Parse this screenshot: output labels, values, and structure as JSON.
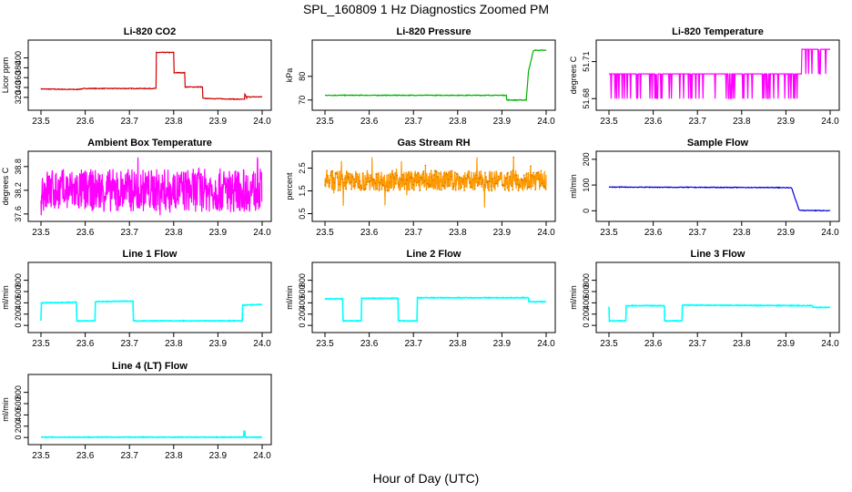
{
  "figure": {
    "title": "SPL_160809  1 Hz Diagnostics Zoomed PM",
    "xlabel": "Hour of Day (UTC)"
  },
  "chart_data": [
    {
      "type": "line",
      "title": "Li-820 CO2",
      "ylabel": "Licor ppm",
      "xlim": [
        23.5,
        24.0
      ],
      "ylim": [
        305,
        425
      ],
      "xticks": [
        "23.5",
        "23.6",
        "23.7",
        "23.8",
        "23.9",
        "24.0"
      ],
      "yticks": [
        320,
        340,
        360,
        380,
        400
      ],
      "color": "#d00000",
      "grid": false,
      "series": [
        {
          "x": [
            23.5,
            23.58,
            23.6,
            23.62,
            23.76,
            23.761,
            23.8,
            23.801,
            23.825,
            23.826,
            23.865,
            23.866,
            23.96,
            23.961,
            23.965,
            23.966,
            24.0
          ],
          "values": [
            337,
            336,
            338,
            338,
            338,
            411,
            411,
            370,
            370,
            341,
            341,
            318,
            316,
            327,
            319,
            321,
            321
          ]
        }
      ]
    },
    {
      "type": "line",
      "title": "Li-820 Pressure",
      "ylabel": "kPa",
      "xlim": [
        23.5,
        24.0
      ],
      "ylim": [
        68,
        93
      ],
      "xticks": [
        "23.5",
        "23.6",
        "23.7",
        "23.8",
        "23.9",
        "24.0"
      ],
      "yticks": [
        70,
        80
      ],
      "color": "#00b000",
      "grid": false,
      "series": [
        {
          "x": [
            23.5,
            23.91,
            23.911,
            23.955,
            23.96,
            23.97,
            23.972,
            24.0
          ],
          "values": [
            72,
            72,
            70,
            70,
            82,
            90,
            91,
            91
          ]
        }
      ]
    },
    {
      "type": "line",
      "title": "Li-820 Temperature",
      "ylabel": "degrees C",
      "xlim": [
        23.5,
        24.0
      ],
      "ylim": [
        51.675,
        51.723
      ],
      "xticks": [
        "23.5",
        "23.6",
        "23.7",
        "23.8",
        "23.9",
        "24.0"
      ],
      "yticks": [
        51.68,
        51.71
      ],
      "color": "#ff00ff",
      "grid": false,
      "series": [
        {
          "x": [
            23.5,
            23.935,
            23.936,
            24.0
          ],
          "values": [
            51.7,
            51.7,
            51.72,
            51.72
          ]
        }
      ]
    },
    {
      "type": "line",
      "title": "Ambient Box Temperature",
      "ylabel": "degrees C",
      "xlim": [
        23.5,
        24.0
      ],
      "ylim": [
        37.55,
        39.05
      ],
      "xticks": [
        "23.5",
        "23.6",
        "23.7",
        "23.8",
        "23.9",
        "24.0"
      ],
      "yticks": [
        37.6,
        38.2,
        38.8
      ],
      "color": "#ff00ff",
      "grid": false,
      "series": [
        {
          "x": [
            23.5,
            24.0
          ],
          "values": [
            38.2,
            38.2
          ]
        }
      ]
    },
    {
      "type": "line",
      "title": "Gas Stream RH",
      "ylabel": "percent",
      "xlim": [
        23.5,
        24.0
      ],
      "ylim": [
        0.4,
        3.0
      ],
      "xticks": [
        "23.5",
        "23.6",
        "23.7",
        "23.8",
        "23.9",
        "24.0"
      ],
      "yticks": [
        0.5,
        1.5,
        2.5
      ],
      "color": "#ff9900",
      "grid": false,
      "series": [
        {
          "x": [
            23.5,
            24.0
          ],
          "values": [
            1.95,
            1.95
          ]
        }
      ]
    },
    {
      "type": "line",
      "title": "Sample Flow",
      "ylabel": "ml/min",
      "xlim": [
        23.5,
        24.0
      ],
      "ylim": [
        -20,
        210
      ],
      "xticks": [
        "23.5",
        "23.6",
        "23.7",
        "23.8",
        "23.9",
        "24.0"
      ],
      "yticks": [
        0,
        100,
        200
      ],
      "color": "#0000dd",
      "grid": false,
      "series": [
        {
          "x": [
            23.5,
            23.91,
            23.913,
            23.93,
            24.0
          ],
          "values": [
            92,
            90,
            88,
            2,
            0
          ]
        }
      ]
    },
    {
      "type": "line",
      "title": "Line 1 Flow",
      "ylabel": "ml/min",
      "xlim": [
        23.5,
        24.0
      ],
      "ylim": [
        -30,
        1020
      ],
      "xticks": [
        "23.5",
        "23.6",
        "23.7",
        "23.8",
        "23.9",
        "24.0"
      ],
      "yticks": [
        0,
        200,
        400,
        600,
        800
      ],
      "color": "#00ffff",
      "grid": false,
      "series": [
        {
          "x": [
            23.5,
            23.501,
            23.58,
            23.581,
            23.622,
            23.623,
            23.708,
            23.709,
            23.955,
            23.956,
            24.0
          ],
          "values": [
            80,
            400,
            410,
            80,
            80,
            420,
            430,
            80,
            80,
            360,
            370
          ]
        }
      ]
    },
    {
      "type": "line",
      "title": "Line 2 Flow",
      "ylabel": "ml/min",
      "xlim": [
        23.5,
        24.0
      ],
      "ylim": [
        -30,
        1020
      ],
      "xticks": [
        "23.5",
        "23.6",
        "23.7",
        "23.8",
        "23.9",
        "24.0"
      ],
      "yticks": [
        0,
        200,
        400,
        600,
        800
      ],
      "color": "#00ffff",
      "grid": false,
      "series": [
        {
          "x": [
            23.5,
            23.54,
            23.541,
            23.582,
            23.583,
            23.665,
            23.666,
            23.708,
            23.709,
            23.96,
            23.961,
            24.0
          ],
          "values": [
            470,
            470,
            80,
            80,
            480,
            480,
            80,
            80,
            490,
            490,
            420,
            420
          ]
        }
      ]
    },
    {
      "type": "line",
      "title": "Line 3 Flow",
      "ylabel": "ml/min",
      "xlim": [
        23.5,
        24.0
      ],
      "ylim": [
        -30,
        1020
      ],
      "xticks": [
        "23.5",
        "23.6",
        "23.7",
        "23.8",
        "23.9",
        "24.0"
      ],
      "yticks": [
        0,
        200,
        400,
        600,
        800
      ],
      "color": "#00ffff",
      "grid": false,
      "series": [
        {
          "x": [
            23.5,
            23.501,
            23.538,
            23.539,
            23.625,
            23.626,
            23.665,
            23.666,
            23.96,
            23.961,
            24.0
          ],
          "values": [
            330,
            80,
            80,
            350,
            350,
            80,
            80,
            360,
            350,
            320,
            320
          ]
        }
      ]
    },
    {
      "type": "line",
      "title": "Line 4 (LT) Flow",
      "ylabel": "ml/min",
      "xlim": [
        23.5,
        24.0
      ],
      "ylim": [
        -30,
        1020
      ],
      "xticks": [
        "23.5",
        "23.6",
        "23.7",
        "23.8",
        "23.9",
        "24.0"
      ],
      "yticks": [
        0,
        200,
        400,
        600,
        800
      ],
      "color": "#00ffff",
      "grid": false,
      "series": [
        {
          "x": [
            23.5,
            23.958,
            23.959,
            23.961,
            23.962,
            24.0
          ],
          "values": [
            5,
            5,
            100,
            100,
            5,
            5
          ]
        }
      ]
    }
  ]
}
